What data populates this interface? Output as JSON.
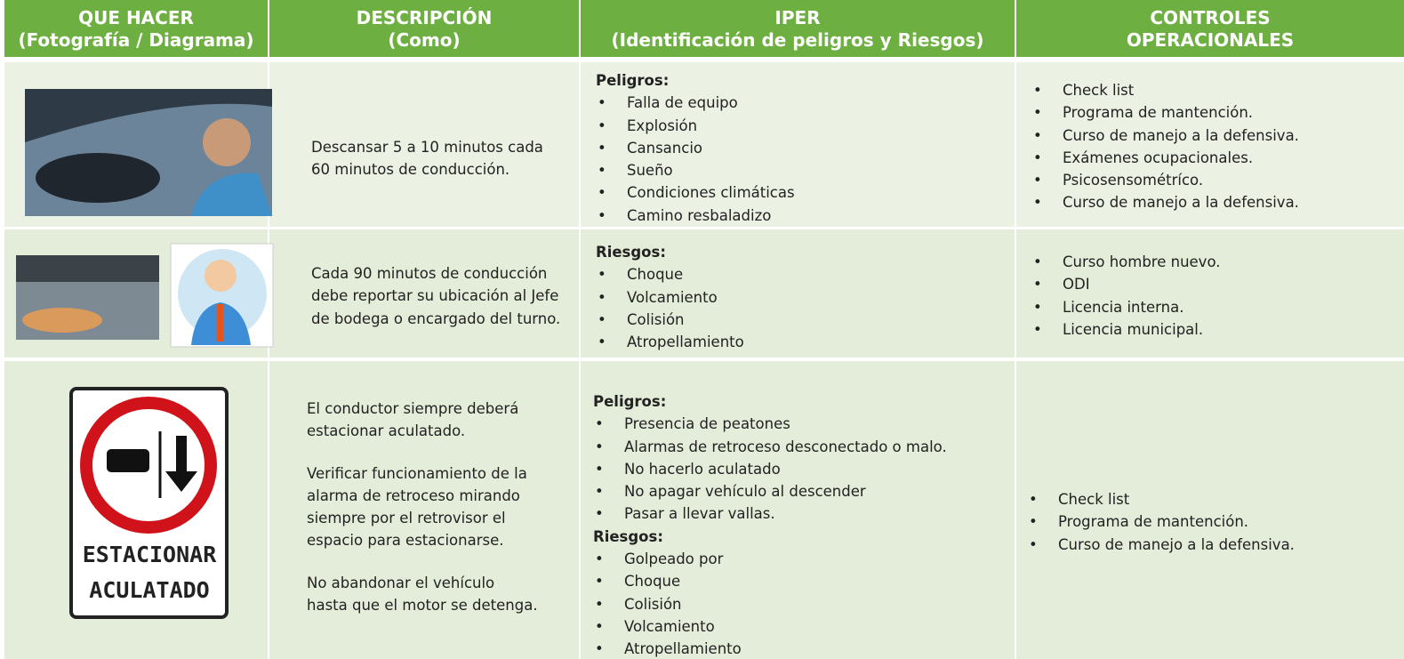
{
  "table": {
    "headers": [
      [
        "QUE HACER",
        "(Fotografía / Diagrama)"
      ],
      [
        "DESCRIPCIÓN",
        "(Como)"
      ],
      [
        "IPER",
        "(Identificación de peligros y Riesgos)"
      ],
      [
        "CONTROLES",
        "OPERACIONALES"
      ]
    ],
    "rows": [
      {
        "description": [
          [
            "Descansar 5 a 10 minutos cada",
            "60 minutos de conducción."
          ]
        ],
        "iper": [
          {
            "heading": "Peligros:",
            "items": [
              "Falla de equipo",
              "Explosión",
              "Cansancio",
              "Sueño",
              "Condiciones climáticas",
              "Camino resbaladizo"
            ]
          }
        ],
        "controls": [
          "Check list",
          "Programa de mantención.",
          "Curso de manejo a la defensiva.",
          "Exámenes ocupacionales.",
          "Psicosensométríco.",
          "Curso de manejo a la defensiva."
        ]
      },
      {
        "description": [
          [
            "Cada 90 minutos de conducción",
            "debe reportar su ubicación al Jefe",
            "de bodega o encargado del turno."
          ]
        ],
        "iper": [
          {
            "heading": "Riesgos:",
            "items": [
              "Choque",
              "Volcamiento",
              "Colisión",
              "Atropellamiento"
            ]
          }
        ],
        "controls": [
          "Curso hombre nuevo.",
          "ODI",
          "Licencia interna.",
          "Licencia municipal."
        ]
      },
      {
        "description": [
          [
            "El conductor siempre deberá",
            "estacionar aculatado."
          ],
          [
            "Verificar funcionamiento de la",
            "alarma de retroceso mirando",
            "siempre por el retrovisor el",
            "espacio para estacionarse."
          ],
          [
            "No abandonar el vehículo",
            "hasta que el motor se detenga."
          ]
        ],
        "iper": [
          {
            "heading": "Peligros:",
            "items": [
              "Presencia de peatones",
              "Alarmas de retroceso desconectado o malo.",
              "No hacerlo aculatado",
              "No apagar vehículo al descender",
              "Pasar a llevar vallas."
            ]
          },
          {
            "heading": "Riesgos:",
            "items": [
              "Golpeado por",
              "Choque",
              "Colisión",
              "Volcamiento",
              "Atropellamiento"
            ]
          }
        ],
        "controls": [
          "Check list",
          "Programa de mantención.",
          "Curso de manejo a la defensiva."
        ]
      }
    ],
    "sign": [
      "ESTACIONAR",
      "ACULATADO"
    ]
  }
}
